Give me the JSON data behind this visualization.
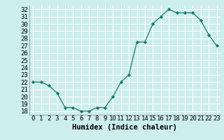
{
  "x": [
    0,
    1,
    2,
    3,
    4,
    5,
    6,
    7,
    8,
    9,
    10,
    11,
    12,
    13,
    14,
    15,
    16,
    17,
    18,
    19,
    20,
    21,
    22,
    23
  ],
  "y": [
    22.0,
    22.0,
    21.5,
    20.5,
    18.5,
    18.5,
    18.0,
    18.0,
    18.5,
    18.5,
    20.0,
    22.0,
    23.0,
    27.5,
    27.5,
    30.0,
    31.0,
    32.0,
    31.5,
    31.5,
    31.5,
    30.5,
    28.5,
    27.0
  ],
  "xlabel": "Humidex (Indice chaleur)",
  "line_color": "#1a7a6e",
  "marker_color": "#1a7a6e",
  "bg_color": "#cceeed",
  "grid_color": "#ffffff",
  "ylim": [
    17.5,
    32.5
  ],
  "xlim": [
    -0.5,
    23.5
  ],
  "yticks": [
    18,
    19,
    20,
    21,
    22,
    23,
    24,
    25,
    26,
    27,
    28,
    29,
    30,
    31,
    32
  ],
  "xtick_labels": [
    "0",
    "1",
    "2",
    "3",
    "4",
    "5",
    "6",
    "7",
    "8",
    "9",
    "10",
    "11",
    "12",
    "13",
    "14",
    "15",
    "16",
    "17",
    "18",
    "19",
    "20",
    "21",
    "22",
    "23"
  ],
  "tick_fontsize": 6.5,
  "xlabel_fontsize": 7.5
}
